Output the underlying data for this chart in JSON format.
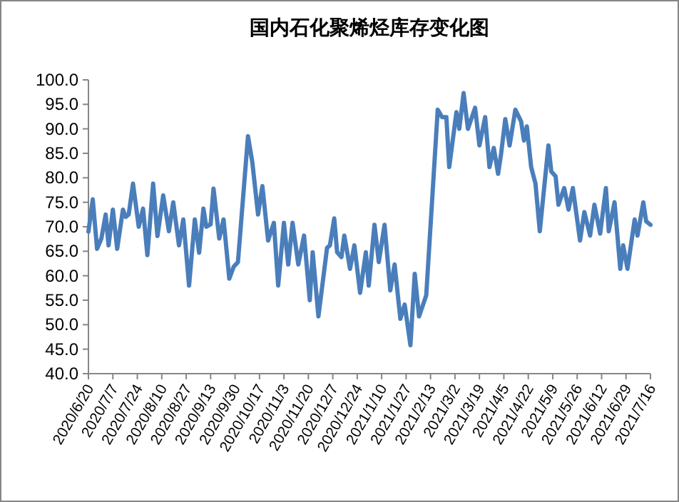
{
  "chart_data": {
    "type": "line",
    "title": "国内石化聚烯烃库存变化图",
    "x": [
      "2020-06-20",
      "2020-06-23",
      "2020-06-26",
      "2020-06-29",
      "2020-07-02",
      "2020-07-04",
      "2020-07-07",
      "2020-07-10",
      "2020-07-14",
      "2020-07-16",
      "2020-07-18",
      "2020-07-21",
      "2020-07-25",
      "2020-07-28",
      "2020-07-31",
      "2020-08-04",
      "2020-08-07",
      "2020-08-11",
      "2020-08-15",
      "2020-08-18",
      "2020-08-22",
      "2020-08-25",
      "2020-08-29",
      "2020-09-02",
      "2020-09-05",
      "2020-09-08",
      "2020-09-10",
      "2020-09-13",
      "2020-09-15",
      "2020-09-19",
      "2020-09-22",
      "2020-09-26",
      "2020-09-29",
      "2020-10-02",
      "2020-10-09",
      "2020-10-12",
      "2020-10-16",
      "2020-10-19",
      "2020-10-23",
      "2020-10-27",
      "2020-10-30",
      "2020-11-03",
      "2020-11-06",
      "2020-11-09",
      "2020-11-13",
      "2020-11-17",
      "2020-11-21",
      "2020-11-23",
      "2020-11-27",
      "2020-12-03",
      "2020-12-05",
      "2020-12-08",
      "2020-12-10",
      "2020-12-13",
      "2020-12-15",
      "2020-12-19",
      "2020-12-22",
      "2020-12-26",
      "2020-12-30",
      "2021-01-01",
      "2021-01-05",
      "2021-01-08",
      "2021-01-12",
      "2021-01-16",
      "2021-01-19",
      "2021-01-23",
      "2021-01-26",
      "2021-01-30",
      "2021-02-02",
      "2021-02-05",
      "2021-02-10",
      "2021-02-18",
      "2021-02-21",
      "2021-02-24",
      "2021-02-26",
      "2021-03-03",
      "2021-03-05",
      "2021-03-08",
      "2021-03-11",
      "2021-03-16",
      "2021-03-19",
      "2021-03-23",
      "2021-03-26",
      "2021-03-29",
      "2021-04-01",
      "2021-04-03",
      "2021-04-06",
      "2021-04-09",
      "2021-04-13",
      "2021-04-17",
      "2021-04-19",
      "2021-04-21",
      "2021-04-24",
      "2021-04-27",
      "2021-04-30",
      "2021-05-06",
      "2021-05-08",
      "2021-05-11",
      "2021-05-13",
      "2021-05-17",
      "2021-05-20",
      "2021-05-23",
      "2021-05-28",
      "2021-05-31",
      "2021-06-04",
      "2021-06-07",
      "2021-06-11",
      "2021-06-15",
      "2021-06-17",
      "2021-06-21",
      "2021-06-25",
      "2021-06-27",
      "2021-06-30",
      "2021-07-05",
      "2021-07-07",
      "2021-07-11",
      "2021-07-13",
      "2021-07-16"
    ],
    "series": [
      {
        "color": "#4a7ebb",
        "values": [
          69.0,
          75.6,
          65.5,
          67.6,
          72.5,
          66.2,
          73.5,
          65.5,
          73.5,
          72.0,
          72.5,
          78.8,
          70.0,
          73.7,
          64.2,
          78.8,
          68.1,
          76.4,
          69.1,
          75.0,
          66.2,
          71.5,
          58.0,
          71.5,
          64.7,
          73.7,
          70.0,
          70.5,
          77.8,
          67.6,
          71.5,
          59.4,
          61.8,
          62.8,
          88.5,
          83.2,
          72.5,
          78.3,
          67.2,
          70.8,
          58.0,
          70.8,
          62.3,
          70.8,
          62.3,
          68.2,
          55.0,
          64.8,
          51.7,
          65.7,
          66.2,
          71.7,
          64.8,
          63.8,
          68.2,
          61.4,
          66.2,
          56.5,
          64.8,
          58.0,
          70.4,
          62.8,
          70.4,
          57.0,
          62.3,
          51.2,
          54.1,
          45.8,
          60.4,
          51.7,
          56.0,
          93.9,
          92.4,
          92.4,
          82.2,
          93.4,
          90.0,
          97.3,
          90.0,
          94.3,
          86.6,
          92.4,
          82.2,
          86.1,
          80.8,
          84.7,
          92.0,
          86.6,
          93.9,
          91.5,
          87.6,
          90.5,
          82.2,
          78.8,
          69.1,
          86.6,
          81.3,
          80.3,
          74.5,
          77.9,
          73.5,
          77.9,
          67.2,
          73.0,
          68.2,
          74.5,
          68.6,
          77.9,
          69.1,
          75.0,
          61.4,
          66.2,
          61.4,
          71.5,
          68.2,
          75.0,
          71.1,
          70.4
        ]
      }
    ],
    "xlim": [
      "2020-06-20",
      "2021-07-16"
    ],
    "xticks": [
      {
        "value": "2020-06-20",
        "label": "2020/6/20"
      },
      {
        "value": "2020-07-07",
        "label": "2020/7/7"
      },
      {
        "value": "2020-07-24",
        "label": "2020/7/24"
      },
      {
        "value": "2020-08-10",
        "label": "2020/8/10"
      },
      {
        "value": "2020-08-27",
        "label": "2020/8/27"
      },
      {
        "value": "2020-09-13",
        "label": "2020/9/13"
      },
      {
        "value": "2020-09-30",
        "label": "2020/9/30"
      },
      {
        "value": "2020-10-17",
        "label": "2020/10/17"
      },
      {
        "value": "2020-11-03",
        "label": "2020/11/3"
      },
      {
        "value": "2020-11-20",
        "label": "2020/11/20"
      },
      {
        "value": "2020-12-07",
        "label": "2020/12/7"
      },
      {
        "value": "2020-12-24",
        "label": "2020/12/24"
      },
      {
        "value": "2021-01-10",
        "label": "2021/1/10"
      },
      {
        "value": "2021-01-27",
        "label": "2021/1/27"
      },
      {
        "value": "2021-02-13",
        "label": "2021/2/13"
      },
      {
        "value": "2021-03-02",
        "label": "2021/3/2"
      },
      {
        "value": "2021-03-19",
        "label": "2021/3/19"
      },
      {
        "value": "2021-04-05",
        "label": "2021/4/5"
      },
      {
        "value": "2021-04-22",
        "label": "2021/4/22"
      },
      {
        "value": "2021-05-09",
        "label": "2021/5/9"
      },
      {
        "value": "2021-05-26",
        "label": "2021/5/26"
      },
      {
        "value": "2021-06-12",
        "label": "2021/6/12"
      },
      {
        "value": "2021-06-29",
        "label": "2021/6/29"
      },
      {
        "value": "2021-07-16",
        "label": "2021/7/16"
      }
    ],
    "ylim": [
      40,
      100
    ],
    "yticks": [
      {
        "value": 40,
        "label": "40.0"
      },
      {
        "value": 45,
        "label": "45.0"
      },
      {
        "value": 50,
        "label": "50.0"
      },
      {
        "value": 55,
        "label": "55.0"
      },
      {
        "value": 60,
        "label": "60.0"
      },
      {
        "value": 65,
        "label": "65.0"
      },
      {
        "value": 70,
        "label": "70.0"
      },
      {
        "value": 75,
        "label": "75.0"
      },
      {
        "value": 80,
        "label": "80.0"
      },
      {
        "value": 85,
        "label": "85.0"
      },
      {
        "value": 90,
        "label": "90.0"
      },
      {
        "value": 95,
        "label": "95.0"
      },
      {
        "value": 100,
        "label": "100.0"
      }
    ],
    "marker": "none",
    "line_style": "solid",
    "grid": false
  }
}
